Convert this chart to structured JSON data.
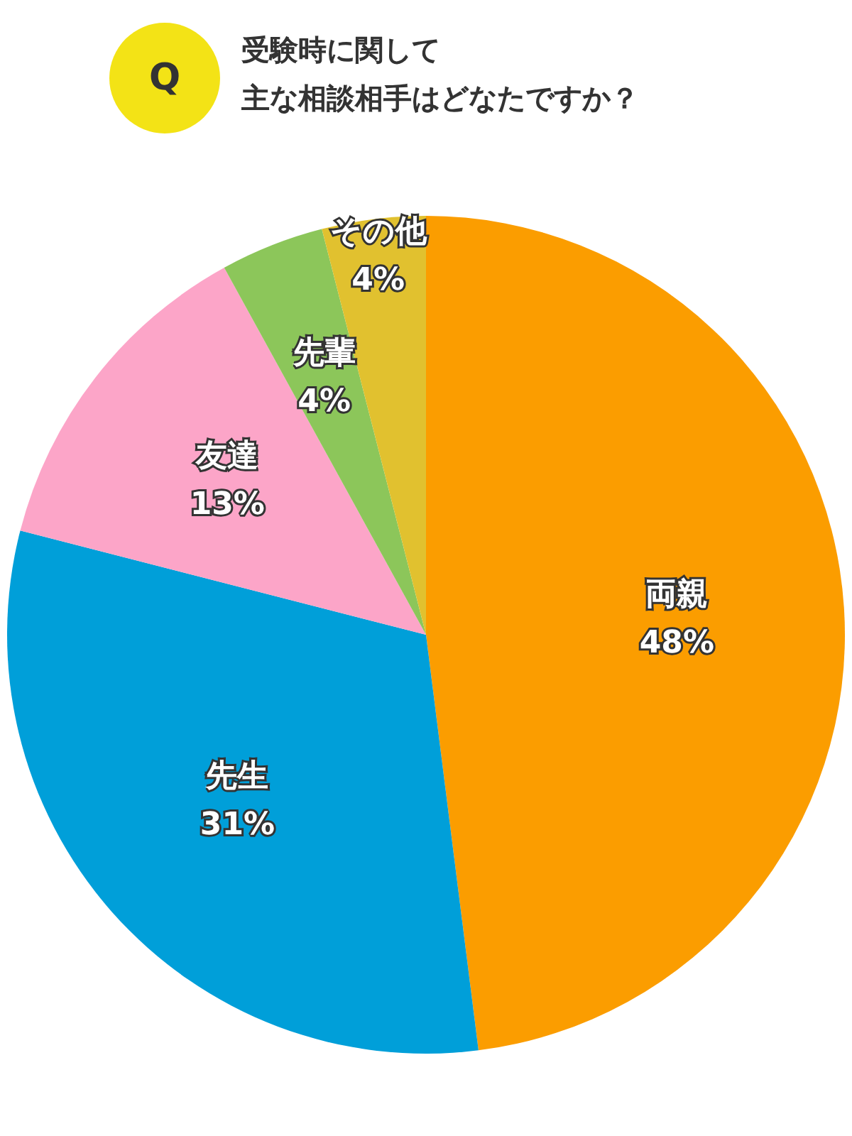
{
  "chart_data": {
    "type": "pie",
    "title": "受験時に関して",
    "subtitle": "主な相談相手はどなたですか？",
    "annotations": [
      "Q"
    ],
    "value_labels": [
      "48%",
      "31%",
      "13%",
      "4%",
      "4%"
    ],
    "categories": [
      "両親",
      "先生",
      "友達",
      "先輩",
      "その他"
    ],
    "values": [
      48,
      31,
      13,
      4,
      4
    ],
    "colors": [
      "#fb9d00",
      "#009fd9",
      "#fca5c8",
      "#8cc65a",
      "#e1c12f"
    ],
    "legend": false
  }
}
